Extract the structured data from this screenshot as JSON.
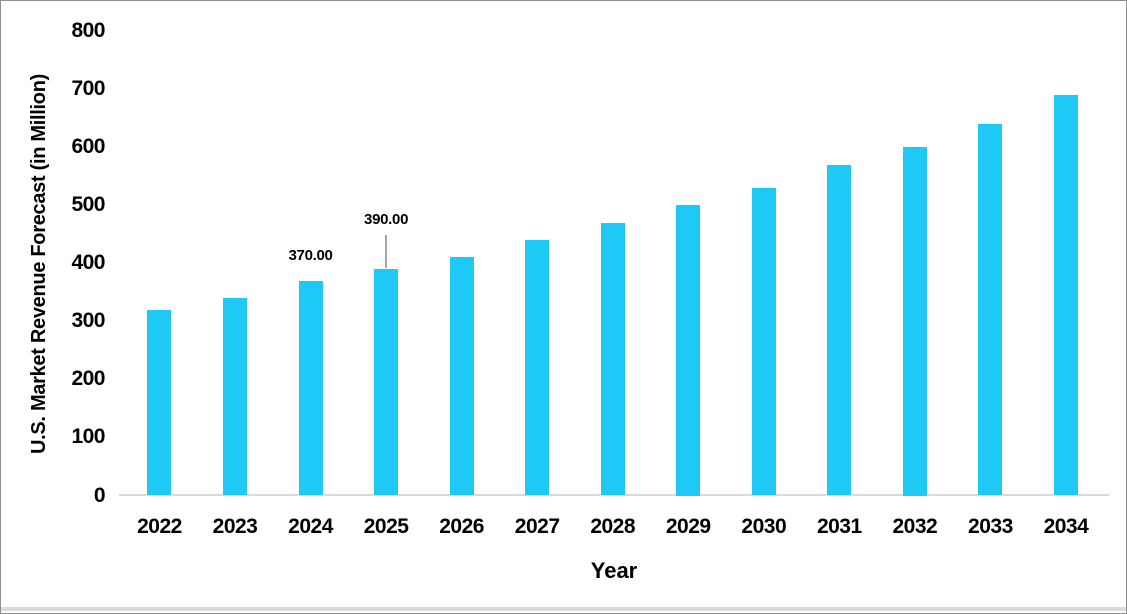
{
  "chart_data": {
    "type": "bar",
    "title": "",
    "xlabel": "Year",
    "ylabel": "U.S. Market Revenue Forecast (in Million)",
    "categories": [
      "2022",
      "2023",
      "2024",
      "2025",
      "2026",
      "2027",
      "2028",
      "2029",
      "2030",
      "2031",
      "2032",
      "2033",
      "2034"
    ],
    "values": [
      320,
      340,
      370,
      390,
      410,
      440,
      470,
      500,
      530,
      570,
      600,
      640,
      690
    ],
    "ylim": [
      0,
      800
    ],
    "yticks": [
      0,
      100,
      200,
      300,
      400,
      500,
      600,
      700,
      800
    ],
    "grid": false,
    "legend": "none",
    "bar_color": "#1ec9f5",
    "axis_line_color": "#d9d9d9",
    "leader_line_color": "#a6a6a6",
    "data_labels": [
      {
        "category": "2024",
        "text": "370.00",
        "leader_line": false
      },
      {
        "category": "2025",
        "text": "390.00",
        "leader_line": true
      }
    ]
  }
}
